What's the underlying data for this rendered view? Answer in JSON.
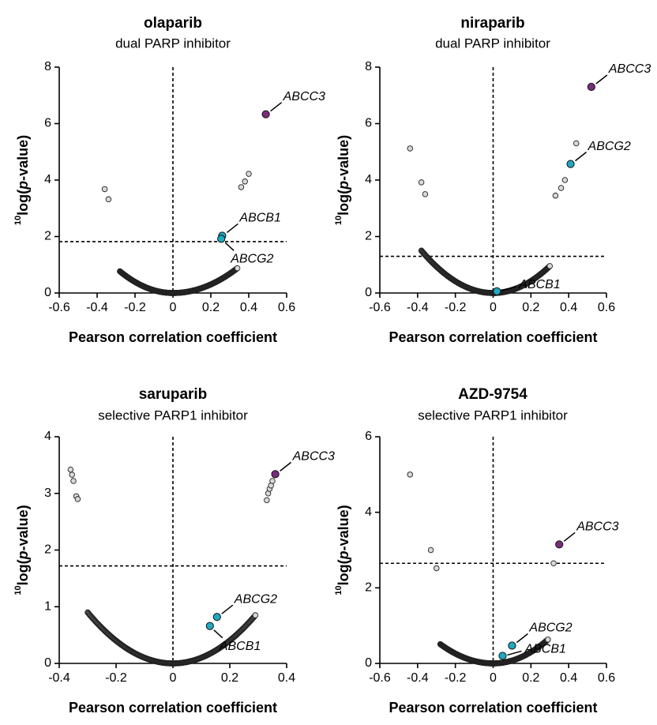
{
  "chart_data": [
    {
      "type": "scatter",
      "title": "olaparib",
      "subtitle": "dual PARP inhibitor",
      "xlabel": "Pearson correlation coefficient",
      "ylabel_sup": "10",
      "ylabel_pre": "log(",
      "ylabel_italic": "p",
      "ylabel_post": "-value)",
      "xlim": [
        -0.6,
        0.6
      ],
      "ylim": [
        0,
        8
      ],
      "xticks": [
        "-0.6",
        "-0.4",
        "-0.2",
        "0",
        "0.2",
        "0.4",
        "0.6"
      ],
      "yticks": [
        "0",
        "2",
        "4",
        "6",
        "8"
      ],
      "threshold_y": 1.82,
      "vline_x": 0,
      "curve": {
        "k_left": 9.8,
        "k_right": 7.6,
        "x_min": -0.28,
        "x_max": 0.34
      },
      "grey_points": [
        [
          -0.36,
          3.68
        ],
        [
          -0.34,
          3.32
        ],
        [
          0.36,
          3.75
        ],
        [
          0.38,
          3.95
        ],
        [
          0.4,
          4.22
        ]
      ],
      "highlights": [
        {
          "gene": "ABCC3",
          "x": 0.49,
          "y": 6.33,
          "color": "#7b2d7d",
          "label_side": "upper-right"
        },
        {
          "gene": "ABCB1",
          "x": 0.26,
          "y": 2.03,
          "color": "#1fa9c2",
          "label_side": "upper-right"
        },
        {
          "gene": "ABCG2",
          "x": 0.255,
          "y": 1.92,
          "color": "#1fa9c2",
          "label_side": "lower-right"
        }
      ]
    },
    {
      "type": "scatter",
      "title": "niraparib",
      "subtitle": "dual PARP inhibitor",
      "xlabel": "Pearson correlation coefficient",
      "ylabel_sup": "10",
      "ylabel_pre": "log(",
      "ylabel_italic": "p",
      "ylabel_post": "-value)",
      "xlim": [
        -0.6,
        0.6
      ],
      "ylim": [
        0,
        8
      ],
      "xticks": [
        "-0.6",
        "-0.4",
        "-0.2",
        "0",
        "0.2",
        "0.4",
        "0.6"
      ],
      "yticks": [
        "0",
        "2",
        "4",
        "6",
        "8"
      ],
      "threshold_y": 1.3,
      "vline_x": 0,
      "curve": {
        "k_left": 10.4,
        "k_right": 10.6,
        "x_min": -0.38,
        "x_max": 0.3
      },
      "grey_points": [
        [
          -0.44,
          5.12
        ],
        [
          -0.38,
          3.92
        ],
        [
          -0.36,
          3.5
        ],
        [
          0.33,
          3.45
        ],
        [
          0.36,
          3.72
        ],
        [
          0.38,
          4.0
        ],
        [
          0.44,
          5.3
        ]
      ],
      "highlights": [
        {
          "gene": "ABCC3",
          "x": 0.52,
          "y": 7.3,
          "color": "#7b2d7d",
          "label_side": "upper-right"
        },
        {
          "gene": "ABCG2",
          "x": 0.41,
          "y": 4.57,
          "color": "#1fa9c2",
          "label_side": "upper-right"
        },
        {
          "gene": "ABCB1",
          "x": 0.02,
          "y": 0.06,
          "color": "#1fa9c2",
          "label_side": "right"
        }
      ]
    },
    {
      "type": "scatter",
      "title": "saruparib",
      "subtitle": "selective PARP1 inhibitor",
      "xlabel": "Pearson correlation coefficient",
      "ylabel_sup": "10",
      "ylabel_pre": "log(",
      "ylabel_italic": "p",
      "ylabel_post": "-value)",
      "xlim": [
        -0.4,
        0.4
      ],
      "ylim": [
        0,
        4
      ],
      "xticks": [
        "-0.4",
        "-0.2",
        "0",
        "0.2",
        "0.4"
      ],
      "yticks": [
        "0",
        "1",
        "2",
        "3",
        "4"
      ],
      "threshold_y": 1.72,
      "vline_x": 0,
      "curve": {
        "k_left": 10.0,
        "k_right": 10.1,
        "x_min": -0.3,
        "x_max": 0.29
      },
      "grey_points": [
        [
          -0.36,
          3.42
        ],
        [
          -0.355,
          3.33
        ],
        [
          -0.35,
          3.22
        ],
        [
          -0.34,
          2.95
        ],
        [
          -0.335,
          2.9
        ],
        [
          0.33,
          2.88
        ],
        [
          0.335,
          3.0
        ],
        [
          0.34,
          3.08
        ],
        [
          0.345,
          3.14
        ],
        [
          0.35,
          3.22
        ]
      ],
      "highlights": [
        {
          "gene": "ABCC3",
          "x": 0.36,
          "y": 3.34,
          "color": "#7b2d7d",
          "label_side": "upper-right"
        },
        {
          "gene": "ABCG2",
          "x": 0.155,
          "y": 0.82,
          "color": "#1fa9c2",
          "label_side": "upper-right"
        },
        {
          "gene": "ABCB1",
          "x": 0.13,
          "y": 0.66,
          "color": "#1fa9c2",
          "label_side": "lower-right"
        }
      ]
    },
    {
      "type": "scatter",
      "title": "AZD-9754",
      "subtitle": "selective PARP1 inhibitor",
      "xlabel": "Pearson correlation coefficient",
      "ylabel_sup": "10",
      "ylabel_pre": "log(",
      "ylabel_italic": "p",
      "ylabel_post": "-value)",
      "xlim": [
        -0.6,
        0.6
      ],
      "ylim": [
        0,
        6
      ],
      "xticks": [
        "-0.6",
        "-0.4",
        "-0.2",
        "0",
        "0.2",
        "0.4",
        "0.6"
      ],
      "yticks": [
        "0",
        "2",
        "4",
        "6"
      ],
      "threshold_y": 2.65,
      "vline_x": 0,
      "curve": {
        "k_left": 6.5,
        "k_right": 7.5,
        "x_min": -0.28,
        "x_max": 0.29
      },
      "grey_points": [
        [
          -0.44,
          5.0
        ],
        [
          -0.33,
          3.0
        ],
        [
          -0.3,
          2.52
        ],
        [
          0.32,
          2.65
        ]
      ],
      "highlights": [
        {
          "gene": "ABCC3",
          "x": 0.35,
          "y": 3.15,
          "color": "#7b2d7d",
          "label_side": "upper-right"
        },
        {
          "gene": "ABCG2",
          "x": 0.1,
          "y": 0.47,
          "color": "#1fa9c2",
          "label_side": "upper-right"
        },
        {
          "gene": "ABCB1",
          "x": 0.05,
          "y": 0.2,
          "color": "#1fa9c2",
          "label_side": "right"
        }
      ]
    }
  ]
}
